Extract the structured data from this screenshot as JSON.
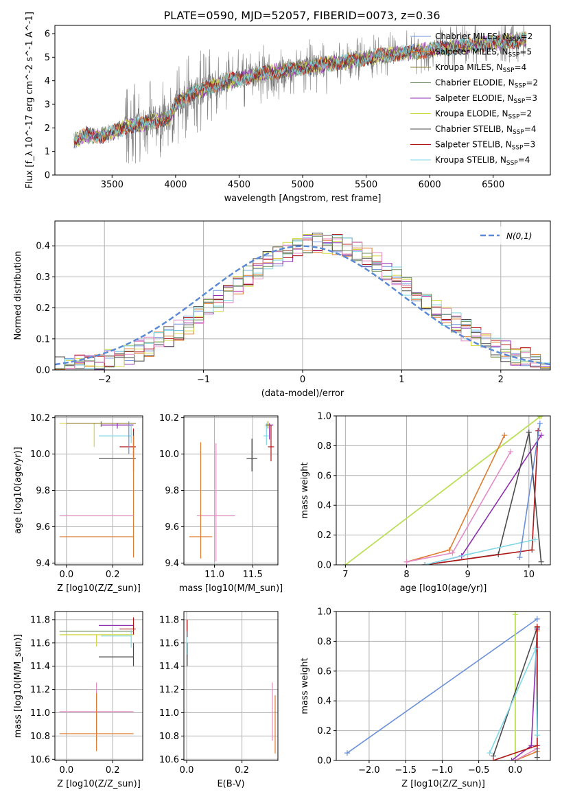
{
  "figure": {
    "title": "PLATE=0590, MJD=52057, FIBERID=0073, z=0.36"
  },
  "colors": {
    "Chabrier MILES": "#6a8fd9",
    "Salpeter MILES": "#e07b2d",
    "Kroupa MILES": "#8a7a2a",
    "Chabrier ELODIE": "#6b8e5e",
    "Salpeter ELODIE": "#8e2fb0",
    "Kroupa ELODIE": "#d4d642",
    "Chabrier STELIB": "#4a4a4a",
    "Salpeter STELIB": "#b01515",
    "Kroupa STELIB": "#7fd8e4",
    "spectrum": "#7a7a7a",
    "pink": "#e38ac6",
    "lime": "#b8e05a",
    "gaussian": "#5a8ad6",
    "grid": "#b0b0b0"
  },
  "chart_data": [
    {
      "id": "spectrum",
      "type": "line",
      "title": "PLATE=0590, MJD=52057, FIBERID=0073, z=0.36",
      "xlabel": "wavelength [Angstrom, rest frame]",
      "ylabel": "Flux [f_λ 10^-17 erg cm^-2 s^-1 A^-1]",
      "xlim": [
        3050,
        6950
      ],
      "ylim": [
        0,
        6.35
      ],
      "xticks": [
        3500,
        4000,
        4500,
        5000,
        5500,
        6000,
        6500
      ],
      "yticks": [
        0,
        1,
        2,
        3,
        4,
        5,
        6
      ],
      "grid": false,
      "legend_position": "top-right",
      "legend": [
        "Chabrier MILES, N_SSP=2",
        "Salpeter MILES, N_SSP=5",
        "Kroupa MILES, N_SSP=4",
        "Chabrier ELODIE, N_SSP=2",
        "Salpeter ELODIE, N_SSP=3",
        "Kroupa ELODIE, N_SSP=2",
        "Chabrier STELIB, N_SSP=4",
        "Salpeter STELIB, N_SSP=3",
        "Kroupa STELIB, N_SSP=4"
      ],
      "continuum": {
        "x": [
          3200,
          3300,
          3400,
          3500,
          3650,
          3800,
          3950,
          4000,
          4100,
          4300,
          4500,
          4800,
          5000,
          5300,
          5600,
          6000,
          6400,
          6750
        ],
        "y": [
          1.45,
          1.7,
          1.65,
          1.8,
          2.1,
          2.25,
          2.4,
          3.0,
          3.4,
          3.8,
          4.1,
          4.4,
          4.55,
          4.8,
          5.05,
          5.3,
          5.55,
          5.75
        ]
      }
    },
    {
      "id": "residual-hist",
      "type": "line",
      "xlabel": "(data-model)/error",
      "ylabel": "Normed distribution",
      "xlim": [
        -2.5,
        2.5
      ],
      "ylim": [
        0,
        0.48
      ],
      "xticks": [
        -2,
        -1,
        0,
        1,
        2
      ],
      "yticks": [
        0.0,
        0.1,
        0.2,
        0.3,
        0.4
      ],
      "grid": true,
      "legend_position": "top-right",
      "legend": [
        "N(0,1)"
      ],
      "bin_width": 0.1,
      "bin_start": -2.5
    },
    {
      "id": "age-vs-Z",
      "type": "scatter",
      "xlabel": "Z [log10(Z/Z_sun)]",
      "ylabel": "age [log10(age/yr)]",
      "xlim": [
        -0.05,
        0.33
      ],
      "ylim": [
        9.39,
        10.21
      ],
      "xticks": [
        0.0,
        0.2
      ],
      "yticks": [
        9.4,
        9.6,
        9.8,
        10.0,
        10.2
      ],
      "grid": true,
      "points": [
        {
          "model": "Kroupa ELODIE",
          "x": 0.12,
          "xerr": [
            0.15,
            0.18
          ],
          "y": 10.17,
          "yerr": [
            0.13,
            0.0
          ]
        },
        {
          "model": "Kroupa MILES",
          "x": 0.15,
          "xerr": [
            0.15,
            0.15
          ],
          "y": 10.17,
          "yerr": [
            0.02,
            0.01
          ]
        },
        {
          "model": "Salpeter ELODIE",
          "x": 0.22,
          "xerr": [
            0.07,
            0.07
          ],
          "y": 10.16,
          "yerr": [
            0.02,
            0.01
          ]
        },
        {
          "model": "Kroupa STELIB",
          "x": 0.28,
          "xerr": [
            0.14,
            0.0
          ],
          "y": 10.1,
          "yerr": [
            0.04,
            0.06
          ]
        },
        {
          "model": "Salpeter STELIB",
          "x": 0.29,
          "xerr": [
            0.06,
            0.01
          ],
          "y": 10.04,
          "yerr": [
            0.05,
            0.1
          ]
        },
        {
          "model": "Chabrier STELIB",
          "x": 0.29,
          "xerr": [
            0.15,
            0.01
          ],
          "y": 9.975,
          "yerr": [
            0.07,
            0.15
          ]
        },
        {
          "model": "Salpeter MILES",
          "x": 0.29,
          "xerr": [
            0.0,
            0.0
          ],
          "y": 10.0,
          "yerr": [
            0.57,
            0.1
          ]
        },
        {
          "model": "Chabrier MILES",
          "x": 0.27,
          "xerr": [
            0.0,
            0.0
          ],
          "y": 10.06,
          "yerr": [
            0.06,
            0.12
          ]
        },
        {
          "model": "pink",
          "x": 0.13,
          "xerr": [
            0.16,
            0.16
          ],
          "y": 9.66,
          "yerr": [
            0.0,
            0.0
          ]
        },
        {
          "model": "Salpeter MILES",
          "x": 0.13,
          "xerr": [
            0.16,
            0.16
          ],
          "y": 9.545,
          "yerr": [
            0.0,
            0.0
          ]
        }
      ]
    },
    {
      "id": "age-vs-mass",
      "type": "scatter",
      "xlabel": "mass [log10(M/M_sun)]",
      "ylabel": "",
      "xlim": [
        10.6,
        11.83
      ],
      "ylim": [
        9.39,
        10.21
      ],
      "xticks": [
        11.0,
        11.5
      ],
      "yticks": [
        9.4,
        9.6,
        9.8,
        10.0,
        10.2
      ],
      "grid": true,
      "points": [
        {
          "model": "Salpeter ELODIE",
          "x": 11.72,
          "xerr": [
            0.05,
            0.05
          ],
          "y": 10.16,
          "yerr": [
            0.08,
            0.01
          ]
        },
        {
          "model": "Kroupa STELIB",
          "x": 11.68,
          "xerr": [
            0.04,
            0.03
          ],
          "y": 10.1,
          "yerr": [
            0.05,
            0.07
          ]
        },
        {
          "model": "Salpeter STELIB",
          "x": 11.74,
          "xerr": [
            0.04,
            0.04
          ],
          "y": 10.04,
          "yerr": [
            0.08,
            0.12
          ]
        },
        {
          "model": "Chabrier STELIB",
          "x": 11.49,
          "xerr": [
            0.07,
            0.07
          ],
          "y": 9.975,
          "yerr": [
            0.07,
            0.11
          ]
        },
        {
          "model": "Kroupa MILES",
          "x": 11.7,
          "xerr": [
            0.03,
            0.03
          ],
          "y": 10.16,
          "yerr": [
            0.02,
            0.02
          ]
        },
        {
          "model": "pink",
          "x": 11.02,
          "xerr": [
            0.25,
            0.25
          ],
          "y": 9.66,
          "yerr": [
            0.25,
            0.4
          ]
        },
        {
          "model": "Salpeter MILES",
          "x": 10.82,
          "xerr": [
            0.15,
            0.15
          ],
          "y": 9.545,
          "yerr": [
            0.12,
            0.52
          ]
        }
      ]
    },
    {
      "id": "massweight-vs-age",
      "type": "line",
      "xlabel": "age [log10(age/yr)]",
      "ylabel": "mass weight",
      "xlim": [
        6.85,
        10.35
      ],
      "ylim": [
        0,
        1.0
      ],
      "xticks": [
        7,
        8,
        9,
        10
      ],
      "yticks": [
        0.0,
        0.2,
        0.4,
        0.6,
        0.8,
        1.0
      ],
      "grid": true,
      "series": [
        {
          "model": "Kroupa ELODIE",
          "x": [
            7.0,
            10.2
          ],
          "y": [
            0.0,
            1.0
          ]
        },
        {
          "model": "lime",
          "x": [
            7.0,
            10.18
          ],
          "y": [
            0.0,
            0.995
          ]
        },
        {
          "model": "Salpeter MILES",
          "x": [
            8.0,
            8.7,
            9.6
          ],
          "y": [
            0.02,
            0.1,
            0.87
          ]
        },
        {
          "model": "pink",
          "x": [
            8.0,
            8.75,
            9.7
          ],
          "y": [
            0.02,
            0.08,
            0.76
          ]
        },
        {
          "model": "Salpeter ELODIE",
          "x": [
            8.3,
            8.9,
            10.2
          ],
          "y": [
            0.0,
            0.06,
            0.87
          ]
        },
        {
          "model": "Chabrier STELIB",
          "x": [
            8.3,
            9.5,
            10.0,
            10.2
          ],
          "y": [
            0.0,
            0.07,
            0.89,
            0.02
          ]
        },
        {
          "model": "Salpeter STELIB",
          "x": [
            8.3,
            10.05,
            10.15
          ],
          "y": [
            0.0,
            0.1,
            0.9
          ]
        },
        {
          "model": "Kroupa STELIB",
          "x": [
            8.3,
            9.0,
            10.1
          ],
          "y": [
            0.0,
            0.07,
            0.17
          ]
        },
        {
          "model": "Chabrier MILES",
          "x": [
            9.85,
            10.18
          ],
          "y": [
            0.05,
            0.95
          ]
        }
      ]
    },
    {
      "id": "mass-vs-Z",
      "type": "scatter",
      "xlabel": "Z [log10(Z/Z_sun)]",
      "ylabel": "mass [log10(M/M_sun)]",
      "xlim": [
        -0.05,
        0.33
      ],
      "ylim": [
        10.59,
        11.87
      ],
      "xticks": [
        0.0,
        0.2
      ],
      "yticks": [
        10.6,
        10.8,
        11.0,
        11.2,
        11.4,
        11.6,
        11.8
      ],
      "grid": true,
      "points": [
        {
          "model": "Salpeter ELODIE",
          "x": 0.22,
          "xerr": [
            0.08,
            0.07
          ],
          "y": 11.75,
          "yerr": [
            0.0,
            0.0
          ]
        },
        {
          "model": "Salpeter STELIB",
          "x": 0.29,
          "xerr": [
            0.06,
            0.01
          ],
          "y": 11.72,
          "yerr": [
            0.05,
            0.1
          ]
        },
        {
          "model": "Chabrier ELODIE",
          "x": 0.13,
          "xerr": [
            0.16,
            0.16
          ],
          "y": 11.7,
          "yerr": [
            0.0,
            0.0
          ]
        },
        {
          "model": "Kroupa ELODIE",
          "x": 0.13,
          "xerr": [
            0.16,
            0.16
          ],
          "y": 11.67,
          "yerr": [
            0.1,
            0.0
          ]
        },
        {
          "model": "Kroupa STELIB",
          "x": 0.28,
          "xerr": [
            0.13,
            0.0
          ],
          "y": 11.66,
          "yerr": [
            0.1,
            0.05
          ]
        },
        {
          "model": "Chabrier STELIB",
          "x": 0.29,
          "xerr": [
            0.15,
            0.0
          ],
          "y": 11.48,
          "yerr": [
            0.08,
            0.12
          ]
        },
        {
          "model": "pink",
          "x": 0.13,
          "xerr": [
            0.16,
            0.16
          ],
          "y": 11.01,
          "yerr": [
            0.25,
            0.25
          ]
        },
        {
          "model": "Salpeter MILES",
          "x": 0.13,
          "xerr": [
            0.16,
            0.16
          ],
          "y": 10.82,
          "yerr": [
            0.15,
            0.35
          ]
        }
      ]
    },
    {
      "id": "mass-vs-EBV",
      "type": "scatter",
      "xlabel": "E(B-V)",
      "ylabel": "",
      "xlim": [
        -0.01,
        0.33
      ],
      "ylim": [
        10.59,
        11.87
      ],
      "xticks": [
        0.0,
        0.2
      ],
      "yticks": [
        10.6,
        10.8,
        11.0,
        11.2,
        11.4,
        11.6,
        11.8
      ],
      "grid": true,
      "points": [
        {
          "model": "Salpeter STELIB",
          "x": 0.002,
          "xerr": [
            0.0,
            0.0
          ],
          "y": 11.7,
          "yerr": [
            0.05,
            0.1
          ]
        },
        {
          "model": "Chabrier STELIB",
          "x": 0.002,
          "xerr": [
            0.0,
            0.0
          ],
          "y": 11.5,
          "yerr": [
            0.1,
            0.1
          ]
        },
        {
          "model": "Kroupa STELIB",
          "x": 0.0,
          "xerr": [
            0.0,
            0.0
          ],
          "y": 11.6,
          "yerr": [
            0.1,
            0.1
          ]
        },
        {
          "model": "pink",
          "x": 0.31,
          "xerr": [
            0.0,
            0.0
          ],
          "y": 11.01,
          "yerr": [
            0.25,
            0.25
          ]
        },
        {
          "model": "Salpeter MILES",
          "x": 0.32,
          "xerr": [
            0.0,
            0.0
          ],
          "y": 10.9,
          "yerr": [
            0.25,
            0.25
          ]
        }
      ]
    },
    {
      "id": "massweight-vs-Z",
      "type": "line",
      "xlabel": "Z [log10(Z/Z_sun)]",
      "ylabel": "mass weight",
      "xlim": [
        -2.45,
        0.48
      ],
      "ylim": [
        0,
        1.0
      ],
      "xticks": [
        -2.0,
        -1.5,
        -1.0,
        -0.5,
        0.0
      ],
      "yticks": [
        0.0,
        0.2,
        0.4,
        0.6,
        0.8,
        1.0
      ],
      "grid": true,
      "series": [
        {
          "model": "Chabrier MILES",
          "x": [
            -2.3,
            0.3
          ],
          "y": [
            0.05,
            0.95
          ]
        },
        {
          "model": "Kroupa ELODIE",
          "x": [
            0.0,
            0.0
          ],
          "y": [
            0.0,
            1.0
          ]
        },
        {
          "model": "lime",
          "x": [
            0.0,
            0.0
          ],
          "y": [
            0.0,
            0.98
          ]
        },
        {
          "model": "Salpeter MILES",
          "x": [
            0.0,
            0.3,
            0.3
          ],
          "y": [
            0.0,
            0.06,
            0.87
          ]
        },
        {
          "model": "pink",
          "x": [
            0.0,
            0.3,
            0.3
          ],
          "y": [
            0.0,
            0.08,
            0.76
          ]
        },
        {
          "model": "Salpeter ELODIE",
          "x": [
            -0.05,
            0.22,
            0.3
          ],
          "y": [
            0.0,
            0.1,
            0.88
          ]
        },
        {
          "model": "Chabrier STELIB",
          "x": [
            -0.3,
            0.3,
            0.3
          ],
          "y": [
            0.03,
            0.89,
            0.02
          ]
        },
        {
          "model": "Salpeter STELIB",
          "x": [
            -0.3,
            0.3,
            0.3
          ],
          "y": [
            0.0,
            0.1,
            0.9
          ]
        },
        {
          "model": "Kroupa STELIB",
          "x": [
            -0.35,
            0.28,
            0.3
          ],
          "y": [
            0.05,
            0.75,
            0.17
          ]
        }
      ]
    }
  ]
}
